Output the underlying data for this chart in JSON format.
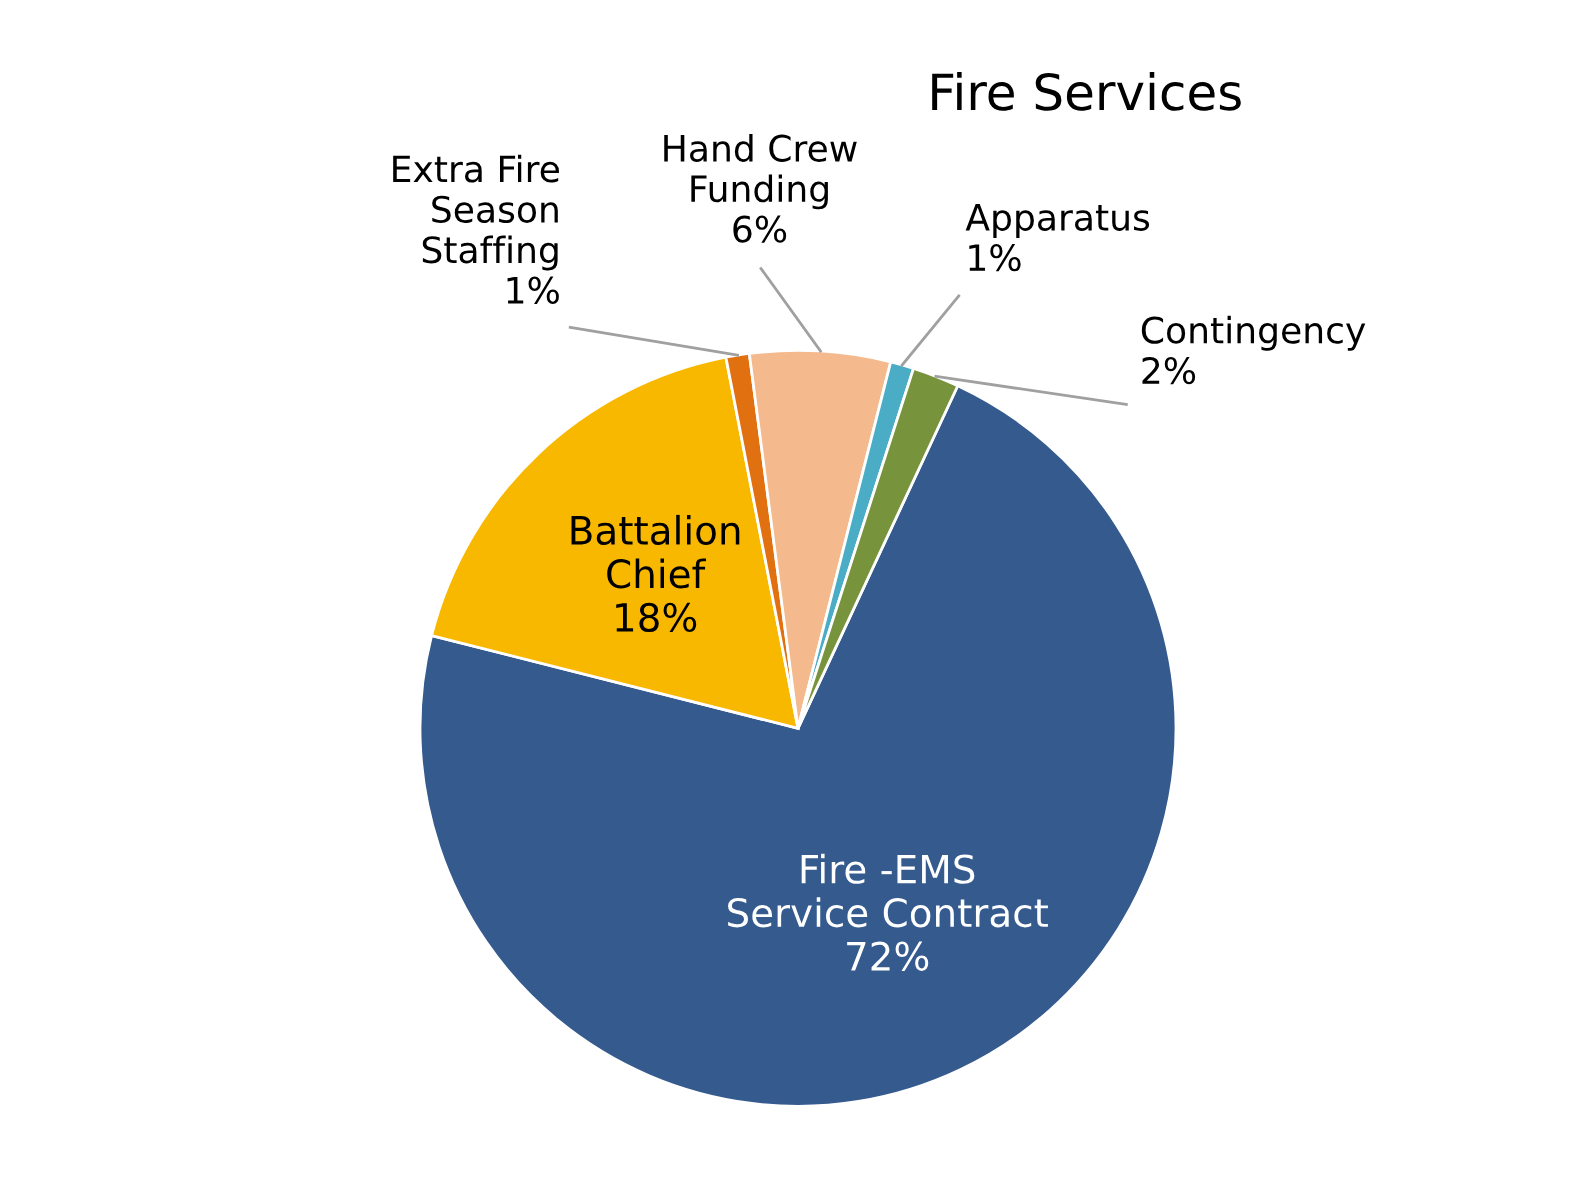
{
  "chart_data": {
    "type": "pie",
    "title": "Fire Services",
    "categories": [
      "Fire -EMS\nService Contract",
      "Battalion\nChief",
      "Extra Fire\nSeason\nStaffing",
      "Hand Crew\nFunding",
      "Apparatus",
      "Contingency"
    ],
    "values": [
      72,
      18,
      1,
      6,
      1,
      2
    ],
    "value_labels": [
      "72%",
      "18%",
      "1%",
      "6%",
      "1%",
      "2%"
    ],
    "colors": [
      "#355a8e",
      "#f9b800",
      "#e07010",
      "#f4b98c",
      "#4bacc6",
      "#77933c"
    ],
    "legend": false
  }
}
